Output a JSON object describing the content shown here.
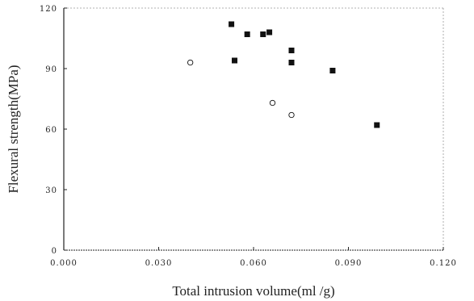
{
  "chart_data": {
    "type": "scatter",
    "title": "",
    "xlabel": "Total intrusion volume(ml /g)",
    "ylabel": "Flexural strength(MPa)",
    "xlim": [
      0.0,
      0.12
    ],
    "ylim": [
      0,
      120
    ],
    "x_ticks": [
      "0.000",
      "0.030",
      "0.060",
      "0.090",
      "0.120"
    ],
    "y_ticks": [
      "0",
      "30",
      "60",
      "90",
      "120"
    ],
    "grid": false,
    "legend": "none",
    "series": [
      {
        "marker": "filled-square",
        "color": "#111111",
        "points": [
          {
            "x": 0.053,
            "y": 112
          },
          {
            "x": 0.054,
            "y": 94
          },
          {
            "x": 0.058,
            "y": 107
          },
          {
            "x": 0.063,
            "y": 107
          },
          {
            "x": 0.065,
            "y": 108
          },
          {
            "x": 0.072,
            "y": 99
          },
          {
            "x": 0.072,
            "y": 93
          },
          {
            "x": 0.085,
            "y": 89
          },
          {
            "x": 0.099,
            "y": 62
          }
        ]
      },
      {
        "marker": "open-circle",
        "color": "#111111",
        "points": [
          {
            "x": 0.04,
            "y": 93
          },
          {
            "x": 0.066,
            "y": 73
          },
          {
            "x": 0.072,
            "y": 67
          }
        ]
      }
    ]
  }
}
